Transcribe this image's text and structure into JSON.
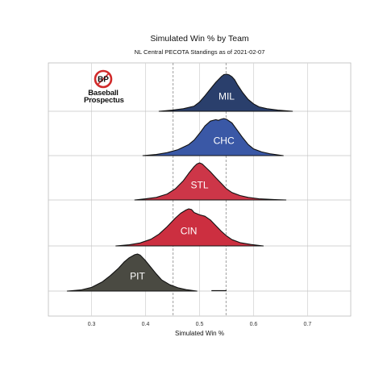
{
  "chart_data": {
    "type": "ridgeline",
    "title": "Simulated Win % by Team",
    "subtitle": "NL Central PECOTA Standings as of 2021-02-07",
    "xlabel": "Simulated Win %",
    "xlim": [
      0.22,
      0.78
    ],
    "xticks": [
      0.3,
      0.4,
      0.5,
      0.6,
      0.7
    ],
    "xtick_labels": [
      "0.3",
      "0.4",
      "0.5",
      "0.6",
      "0.7"
    ],
    "reference_lines": [
      0.451,
      0.549
    ],
    "grid": true,
    "series": [
      {
        "name": "MIL",
        "color": "#2a3f6c",
        "points": [
          [
            0.425,
            0
          ],
          [
            0.45,
            0.03
          ],
          [
            0.47,
            0.07
          ],
          [
            0.49,
            0.14
          ],
          [
            0.5,
            0.25
          ],
          [
            0.51,
            0.42
          ],
          [
            0.52,
            0.6
          ],
          [
            0.53,
            0.78
          ],
          [
            0.54,
            0.93
          ],
          [
            0.545,
            0.99
          ],
          [
            0.55,
            1
          ],
          [
            0.555,
            0.98
          ],
          [
            0.56,
            0.93
          ],
          [
            0.565,
            0.85
          ],
          [
            0.57,
            0.72
          ],
          [
            0.58,
            0.5
          ],
          [
            0.59,
            0.32
          ],
          [
            0.6,
            0.2
          ],
          [
            0.61,
            0.12
          ],
          [
            0.625,
            0.07
          ],
          [
            0.645,
            0.03
          ],
          [
            0.672,
            0
          ]
        ]
      },
      {
        "name": "CHC",
        "color": "#3a58a6",
        "points": [
          [
            0.395,
            0
          ],
          [
            0.42,
            0.03
          ],
          [
            0.44,
            0.08
          ],
          [
            0.46,
            0.16
          ],
          [
            0.48,
            0.3
          ],
          [
            0.49,
            0.42
          ],
          [
            0.5,
            0.6
          ],
          [
            0.51,
            0.8
          ],
          [
            0.52,
            0.93
          ],
          [
            0.53,
            0.97
          ],
          [
            0.535,
            0.95
          ],
          [
            0.54,
            0.98
          ],
          [
            0.545,
            1
          ],
          [
            0.55,
            0.98
          ],
          [
            0.56,
            0.88
          ],
          [
            0.57,
            0.68
          ],
          [
            0.58,
            0.48
          ],
          [
            0.59,
            0.3
          ],
          [
            0.6,
            0.18
          ],
          [
            0.615,
            0.1
          ],
          [
            0.63,
            0.05
          ],
          [
            0.655,
            0
          ]
        ]
      },
      {
        "name": "STL",
        "color": "#cd3648",
        "points": [
          [
            0.38,
            0
          ],
          [
            0.4,
            0.03
          ],
          [
            0.42,
            0.07
          ],
          [
            0.44,
            0.16
          ],
          [
            0.455,
            0.3
          ],
          [
            0.47,
            0.52
          ],
          [
            0.48,
            0.72
          ],
          [
            0.49,
            0.9
          ],
          [
            0.495,
            0.97
          ],
          [
            0.5,
            1
          ],
          [
            0.505,
            0.97
          ],
          [
            0.51,
            0.9
          ],
          [
            0.52,
            0.76
          ],
          [
            0.53,
            0.6
          ],
          [
            0.54,
            0.45
          ],
          [
            0.55,
            0.3
          ],
          [
            0.56,
            0.2
          ],
          [
            0.575,
            0.12
          ],
          [
            0.59,
            0.07
          ],
          [
            0.61,
            0.03
          ],
          [
            0.64,
            0.01
          ],
          [
            0.66,
            0
          ]
        ]
      },
      {
        "name": "CIN",
        "color": "#cc2f40",
        "points": [
          [
            0.345,
            0
          ],
          [
            0.37,
            0.03
          ],
          [
            0.39,
            0.08
          ],
          [
            0.41,
            0.18
          ],
          [
            0.425,
            0.32
          ],
          [
            0.44,
            0.52
          ],
          [
            0.455,
            0.75
          ],
          [
            0.465,
            0.88
          ],
          [
            0.475,
            0.97
          ],
          [
            0.48,
            1
          ],
          [
            0.485,
            0.98
          ],
          [
            0.49,
            0.9
          ],
          [
            0.5,
            0.84
          ],
          [
            0.51,
            0.8
          ],
          [
            0.52,
            0.7
          ],
          [
            0.53,
            0.55
          ],
          [
            0.54,
            0.4
          ],
          [
            0.55,
            0.27
          ],
          [
            0.56,
            0.17
          ],
          [
            0.575,
            0.09
          ],
          [
            0.595,
            0.04
          ],
          [
            0.618,
            0
          ]
        ]
      },
      {
        "name": "PIT",
        "color": "#4a4a42",
        "points": [
          [
            0.255,
            0
          ],
          [
            0.28,
            0.03
          ],
          [
            0.3,
            0.1
          ],
          [
            0.32,
            0.25
          ],
          [
            0.335,
            0.42
          ],
          [
            0.35,
            0.62
          ],
          [
            0.36,
            0.78
          ],
          [
            0.37,
            0.9
          ],
          [
            0.38,
            0.98
          ],
          [
            0.385,
            1
          ],
          [
            0.39,
            0.97
          ],
          [
            0.4,
            0.82
          ],
          [
            0.41,
            0.64
          ],
          [
            0.42,
            0.46
          ],
          [
            0.43,
            0.3
          ],
          [
            0.445,
            0.17
          ],
          [
            0.46,
            0.09
          ],
          [
            0.475,
            0.04
          ],
          [
            0.495,
            0
          ]
        ],
        "outlier_segment": [
          0.522,
          0.55
        ]
      }
    ]
  },
  "logo": {
    "badge": "BP",
    "line1": "Baseball",
    "line2": "Prospectus"
  }
}
